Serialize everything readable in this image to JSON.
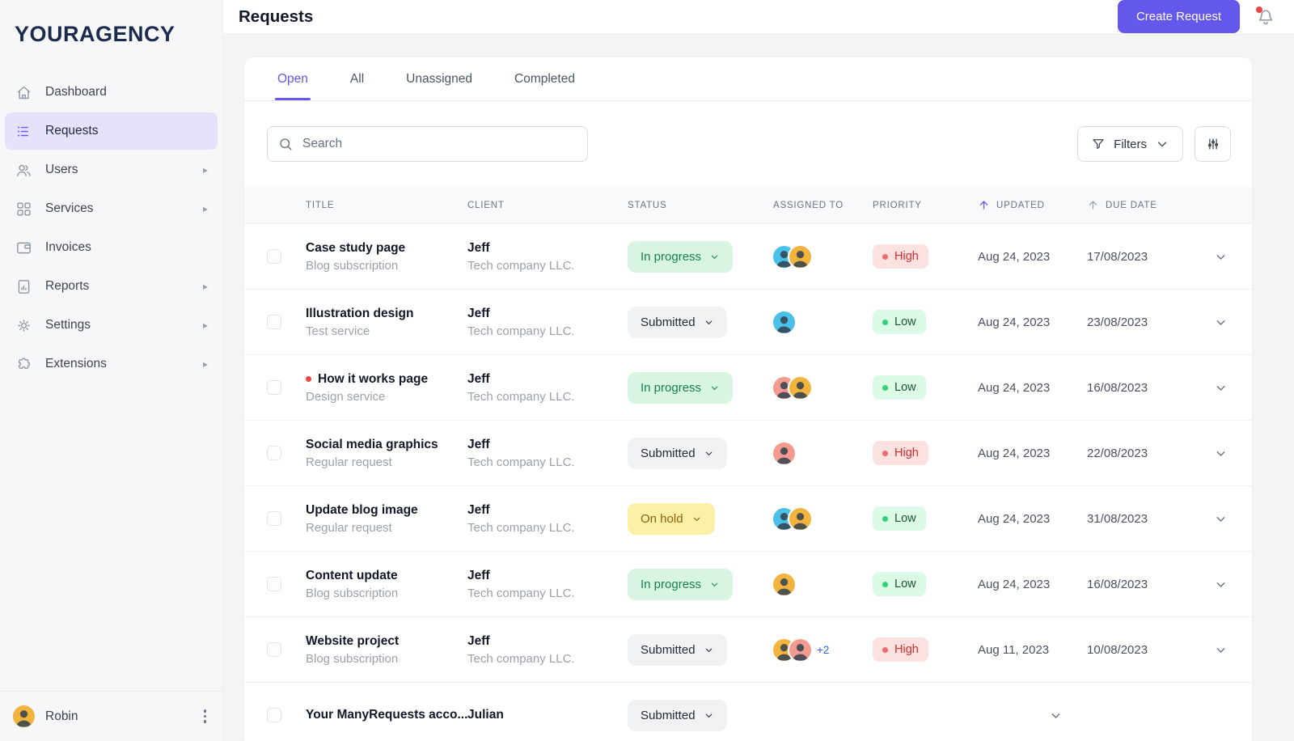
{
  "brand": {
    "name": "YOURAGENCY"
  },
  "colors": {
    "accent": "#6457EC",
    "accent_light": "#E6E2FC",
    "notification_red": "#EF4444",
    "status": {
      "in_progress": {
        "bg": "#D7F5E2",
        "text": "#17814D"
      },
      "submitted": {
        "bg": "#F1F2F4",
        "text": "#252B37"
      },
      "on_hold": {
        "bg": "#FAF0A6",
        "text": "#925F0E"
      }
    },
    "priority": {
      "high": {
        "bg": "#FCE1E1",
        "text": "#D72C2C",
        "dot": "#F06A6A"
      },
      "low": {
        "bg": "#DCFBE7",
        "text": "#1C5234",
        "dot": "#2FD375"
      }
    },
    "avatar_palette": {
      "cyan": "#49C1E8",
      "yellow": "#F2B43C",
      "salmon": "#F49A8F"
    }
  },
  "sidebar": {
    "items": [
      {
        "label": "Dashboard"
      },
      {
        "label": "Requests"
      },
      {
        "label": "Users"
      },
      {
        "label": "Services"
      },
      {
        "label": "Invoices"
      },
      {
        "label": "Reports"
      },
      {
        "label": "Settings"
      },
      {
        "label": "Extensions"
      }
    ],
    "user": {
      "name": "Robin"
    }
  },
  "header": {
    "title": "Requests",
    "create_button_label": "Create Request"
  },
  "tabs": [
    {
      "label": "Open",
      "active": true
    },
    {
      "label": "All",
      "active": false
    },
    {
      "label": "Unassigned",
      "active": false
    },
    {
      "label": "Completed",
      "active": false
    }
  ],
  "toolbar": {
    "search_placeholder": "Search",
    "filters_label": "Filters"
  },
  "table": {
    "columns": [
      "Title",
      "Client",
      "Status",
      "Assigned to",
      "Priority",
      "Updated",
      "Due date"
    ],
    "sorted_by": "Updated",
    "rows": [
      {
        "title": "Case study page",
        "subtitle": "Blog subscription",
        "unread": false,
        "client": "Jeff",
        "company": "Tech company LLC.",
        "status": {
          "label": "In progress",
          "type": "in-progress"
        },
        "avatars": [
          "#49C1E8",
          "#F2B43C"
        ],
        "extra_assignees": "",
        "priority": {
          "label": "High",
          "type": "high"
        },
        "updated": "Aug 24, 2023",
        "due": "17/08/2023"
      },
      {
        "title": "Illustration design",
        "subtitle": "Test service",
        "unread": false,
        "client": "Jeff",
        "company": "Tech company LLC.",
        "status": {
          "label": "Submitted",
          "type": "submitted"
        },
        "avatars": [
          "#49C1E8"
        ],
        "extra_assignees": "",
        "priority": {
          "label": "Low",
          "type": "low"
        },
        "updated": "Aug 24, 2023",
        "due": "23/08/2023"
      },
      {
        "title": "How it works page",
        "subtitle": "Design service",
        "unread": true,
        "client": "Jeff",
        "company": "Tech company LLC.",
        "status": {
          "label": "In progress",
          "type": "in-progress"
        },
        "avatars": [
          "#F49A8F",
          "#F2B43C"
        ],
        "extra_assignees": "",
        "priority": {
          "label": "Low",
          "type": "low"
        },
        "updated": "Aug 24, 2023",
        "due": "16/08/2023"
      },
      {
        "title": "Social media graphics",
        "subtitle": "Regular request",
        "unread": false,
        "client": "Jeff",
        "company": "Tech company LLC.",
        "status": {
          "label": "Submitted",
          "type": "submitted"
        },
        "avatars": [
          "#F49A8F"
        ],
        "extra_assignees": "",
        "priority": {
          "label": "High",
          "type": "high"
        },
        "updated": "Aug 24, 2023",
        "due": "22/08/2023"
      },
      {
        "title": "Update blog image",
        "subtitle": "Regular request",
        "unread": false,
        "client": "Jeff",
        "company": "Tech company LLC.",
        "status": {
          "label": "On hold",
          "type": "on-hold"
        },
        "avatars": [
          "#49C1E8",
          "#F2B43C"
        ],
        "extra_assignees": "",
        "priority": {
          "label": "Low",
          "type": "low"
        },
        "updated": "Aug 24, 2023",
        "due": "31/08/2023"
      },
      {
        "title": "Content update",
        "subtitle": "Blog subscription",
        "unread": false,
        "client": "Jeff",
        "company": "Tech company LLC.",
        "status": {
          "label": "In progress",
          "type": "in-progress"
        },
        "avatars": [
          "#F2B43C"
        ],
        "extra_assignees": "",
        "priority": {
          "label": "Low",
          "type": "low"
        },
        "updated": "Aug 24, 2023",
        "due": "16/08/2023"
      },
      {
        "title": "Website project",
        "subtitle": "Blog subscription",
        "unread": false,
        "client": "Jeff",
        "company": "Tech company LLC.",
        "status": {
          "label": "Submitted",
          "type": "submitted"
        },
        "avatars": [
          "#F2B43C",
          "#F49A8F"
        ],
        "extra_assignees": "+2",
        "priority": {
          "label": "High",
          "type": "high"
        },
        "updated": "Aug 11, 2023",
        "due": "10/08/2023"
      },
      {
        "title": "Your ManyRequests acco...",
        "subtitle": "",
        "unread": false,
        "client": "Julian",
        "company": "",
        "status": {
          "label": "Submitted",
          "type": "submitted"
        },
        "avatars": [],
        "extra_assignees": "",
        "priority": null,
        "updated": "",
        "due": ""
      }
    ]
  }
}
